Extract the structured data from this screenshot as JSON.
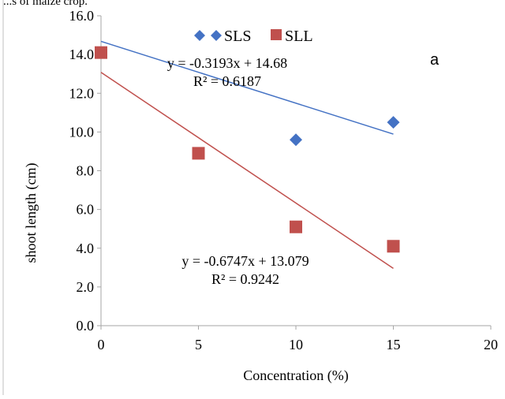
{
  "caption_fragment": "...s of maize crop.",
  "chart_data": {
    "type": "scatter",
    "panel_label": "a",
    "xlabel": "Concentration (%)",
    "ylabel": "shoot length (cm)",
    "xlim": [
      0,
      20
    ],
    "ylim": [
      0,
      16
    ],
    "x_ticks": [
      "0",
      "5",
      "10",
      "15",
      "20"
    ],
    "y_ticks": [
      "0.0",
      "2.0",
      "4.0",
      "6.0",
      "8.0",
      "10.0",
      "12.0",
      "14.0",
      "16.0"
    ],
    "grid": false,
    "legend_position": "top",
    "series": [
      {
        "name": "SLS",
        "marker": "diamond",
        "color": "#4472C4",
        "x": [
          0,
          10,
          15
        ],
        "y": [
          14.1,
          9.6,
          10.5
        ],
        "trendline": {
          "slope": -0.3193,
          "intercept": 14.68,
          "equation": "y = -0.3193x + 14.68",
          "r2": "R² = 0.6187",
          "color": "#4472C4"
        }
      },
      {
        "name": "SLL",
        "marker": "square",
        "color": "#C0504D",
        "x": [
          0,
          5,
          10,
          15
        ],
        "y": [
          14.1,
          8.9,
          5.1,
          4.1
        ],
        "trendline": {
          "slope": -0.6747,
          "intercept": 13.079,
          "equation": "y = -0.6747x + 13.079",
          "r2": "R² = 0.9242",
          "color": "#C0504D"
        }
      }
    ]
  }
}
